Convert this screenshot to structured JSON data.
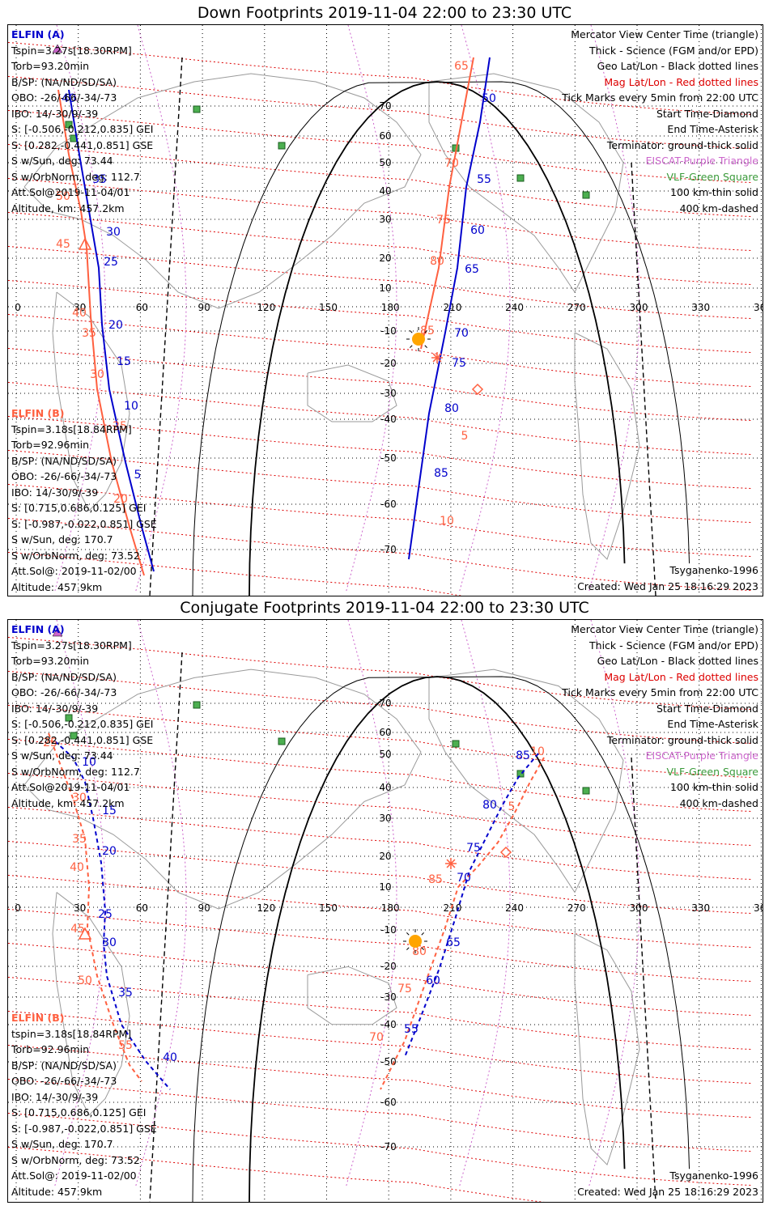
{
  "panels": [
    {
      "title": "Down Footprints 2019-11-04 22:00 to 23:30 UTC",
      "elfin_a": {
        "header": "ELFIN (A)",
        "lines": [
          "Tspin=3.27s[18.30RPM]",
          "Torb=93.20min",
          "B/SP: (NA/ND/SD/SA)",
          "OBO: -26/-66/-34/-73",
          "IBO: 14/-30/9/-39",
          "S: [-0.506,-0.212,0.835] GEI",
          "S: [0.282,-0.441,0.851] GSE",
          "S w/Sun, deg: 73.44",
          "S w/OrbNorm, deg: 112.7",
          "Att.Sol@2019-11-04/01",
          "Altitude, km: 457.2km"
        ]
      },
      "elfin_b": {
        "header": "ELFIN (B)",
        "lines": [
          "Tspin=3.18s[18.84RPM]",
          "Torb=92.96min",
          "B/SP: (NA/ND/SD/SA)",
          "OBO: -26/-66/-34/-73",
          "IBO: 14/-30/9/-39",
          "S: [0.715,0.686,0.125] GEI",
          "S: [-0.987,-0.022,0.851] GSE",
          "S w/Sun, deg: 170.7",
          "S w/OrbNorm, deg: 73.52",
          "Att.Sol@: 2019-11-02/00",
          "Altitude: 457.9km"
        ]
      },
      "legend": {
        "lines": [
          "Mercator View Center Time (triangle)",
          "Thick - Science (FGM and/or EPD)",
          "Geo Lat/Lon - Black dotted lines",
          "Tick Marks every 5min from 22:00 UTC",
          "Start Time-Diamond",
          "End Time-Asterisk",
          "Terminator: ground-thick solid",
          "100 km-thin solid",
          "400 km-dashed"
        ],
        "mag_line": "Mag Lat/Lon - Red dotted lines",
        "eiscat_line": "EISCAT-Purple Triangle",
        "vlf_line": "VLF-Green Square"
      },
      "model": "Tsyganenko-1996",
      "created": "Created: Wed Jan 25 18:16:29 2023",
      "track_a_labels": [
        "40",
        "35",
        "30",
        "25",
        "20",
        "15",
        "10",
        "5",
        "50",
        "55",
        "60",
        "65",
        "70",
        "75",
        "80",
        "85"
      ],
      "track_b_labels": [
        "50",
        "45",
        "40",
        "35",
        "30",
        "25",
        "20",
        "65",
        "70",
        "75",
        "80",
        "85",
        "5",
        "10"
      ]
    },
    {
      "title": "Conjugate Footprints 2019-11-04 22:00 to 23:30 UTC",
      "elfin_a": {
        "header": "ELFIN (A)",
        "lines": [
          "Tspin=3.27s[18.30RPM]",
          "Torb=93.20min",
          "B/SP: (NA/ND/SD/SA)",
          "OBO: -26/-66/-34/-73",
          "IBO: 14/-30/9/-39",
          "S: [-0.506,-0.212,0.835] GEI",
          "S: [0.282,-0.441,0.851] GSE",
          "S w/Sun, deg: 73.44",
          "S w/OrbNorm, deg: 112.7",
          "Att.Sol@2019-11-04/01",
          "Altitude, km: 457.2km"
        ]
      },
      "elfin_b": {
        "header": "ELFIN (B)",
        "lines": [
          "tspin=3.18s[18.84RPM]",
          "Torb=92.96min",
          "B/SP: (NA/ND/SD/SA)",
          "OBO: -26/-66/-34/-73",
          "IBO: 14/-30/9/-39",
          "S: [0.715,0.686,0.125] GEI",
          "S: [-0.987,-0.022,0.851] GSE",
          "S w/Sun, deg: 170.7",
          "S w/OrbNorm, deg: 73.52",
          "Att.Sol@: 2019-11-02/00",
          "Altitude: 457.9km"
        ]
      },
      "legend": {
        "lines": [
          "Mercator View Center Time (triangle)",
          "Thick - Science (FGM and/or EPD)",
          "Geo Lat/Lon - Black dotted lines",
          "Tick Marks every 5min from 22:00 UTC",
          "Start Time-Diamond",
          "End Time-Asterisk",
          "Terminator: ground-thick solid",
          "100 km-thin solid",
          "400 km-dashed"
        ],
        "mag_line": "Mag Lat/Lon - Red dotted lines",
        "eiscat_line": "EISCAT-Purple Triangle",
        "vlf_line": "VLF-Green Square"
      },
      "model": "Tsyganenko-1996",
      "created": "Created: Wed Jan 25 18:16:29 2023",
      "track_a_labels": [
        "10",
        "15",
        "20",
        "25",
        "30",
        "35",
        "40",
        "85",
        "80",
        "75",
        "70",
        "65",
        "60",
        "55"
      ],
      "track_b_labels": [
        "25",
        "30",
        "35",
        "40",
        "45",
        "50",
        "55",
        "10",
        "5",
        "85",
        "80",
        "75",
        "70"
      ]
    }
  ],
  "axis": {
    "lon_ticks": [
      "0",
      "30",
      "60",
      "90",
      "120",
      "150",
      "180",
      "210",
      "240",
      "270",
      "300",
      "330",
      "360"
    ],
    "lat_ticks_north": [
      "70",
      "60",
      "50",
      "40",
      "30",
      "20",
      "10"
    ],
    "lat_ticks_south": [
      "-10",
      "-20",
      "-30",
      "-40",
      "-50",
      "-60",
      "-70"
    ]
  },
  "colors": {
    "elfin_a": "#0000cc",
    "elfin_b": "#ff6040",
    "mag_grid": "#dd0000",
    "eiscat": "#cc66cc",
    "vlf": "#3a9a3a",
    "sun": "#ffa500",
    "coast": "#9a9a9a"
  }
}
